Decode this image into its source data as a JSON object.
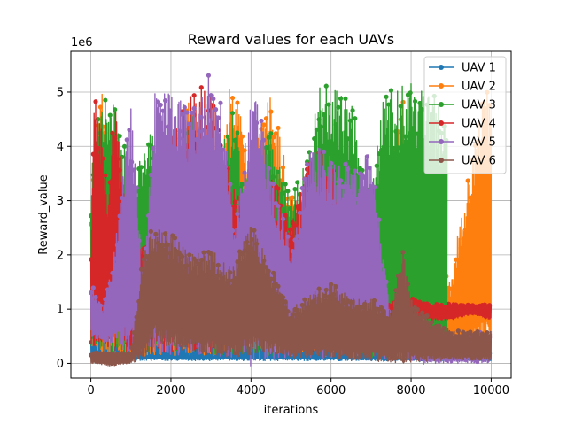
{
  "chart_data": {
    "type": "line",
    "title": "Reward values for each UAVs",
    "xlabel": "iterations",
    "ylabel": "Reward_value",
    "y_offset_label": "1e6",
    "xlim": [
      -500,
      10500
    ],
    "ylim": [
      -0.27,
      5.75
    ],
    "xticks": [
      0,
      2000,
      4000,
      6000,
      8000,
      10000
    ],
    "xtick_labels": [
      "0",
      "2000",
      "4000",
      "6000",
      "8000",
      "10000"
    ],
    "yticks": [
      0,
      1,
      2,
      3,
      4,
      5
    ],
    "ytick_labels": [
      "0",
      "1",
      "2",
      "3",
      "4",
      "5"
    ],
    "grid": true,
    "legend": "top-right",
    "series": [
      {
        "name": "UAV 1",
        "color": "#1f77b4",
        "x": [
          0,
          500,
          1000,
          2000,
          3000,
          4000,
          5000,
          6000,
          7000,
          8000,
          9000,
          10000
        ],
        "low": [
          0.05,
          0.05,
          0.05,
          0.05,
          0.05,
          0.05,
          0.05,
          0.05,
          0.05,
          0.05,
          0.05,
          0.05
        ],
        "high": [
          0.5,
          0.6,
          0.4,
          0.4,
          0.4,
          0.4,
          0.4,
          0.4,
          0.3,
          0.2,
          0.2,
          0.2
        ]
      },
      {
        "name": "UAV 2",
        "color": "#ff7f0e",
        "x": [
          0,
          300,
          600,
          1000,
          1500,
          2000,
          2500,
          3000,
          3500,
          4000,
          4500,
          5000,
          5500,
          6000,
          6500,
          7000,
          7500,
          7800,
          8000,
          8500,
          9000,
          9200,
          9500,
          9800,
          10000
        ],
        "low": [
          0.1,
          0.1,
          0.1,
          0.1,
          0.15,
          0.1,
          0.15,
          0.1,
          0.15,
          0.2,
          0.15,
          0.2,
          0.15,
          0.2,
          0.15,
          0.2,
          0.2,
          0.1,
          0.2,
          0.2,
          0.05,
          0.1,
          0.1,
          0.1,
          0.1
        ],
        "high": [
          3.2,
          5.2,
          2.5,
          3.0,
          2.2,
          3.5,
          5.0,
          2.5,
          5.3,
          3.8,
          5.1,
          3.2,
          2.0,
          4.2,
          2.3,
          3.2,
          3.5,
          5.2,
          3.8,
          2.6,
          1.5,
          2.6,
          3.8,
          5.0,
          5.3
        ]
      },
      {
        "name": "UAV 3",
        "color": "#2ca02c",
        "x": [
          0,
          300,
          600,
          1000,
          1500,
          2000,
          2500,
          3000,
          3500,
          4000,
          4500,
          5000,
          5500,
          5700,
          6000,
          6500,
          7000,
          7300,
          7600,
          8000,
          8400,
          8900
        ],
        "low": [
          0.3,
          0.2,
          0.1,
          0.2,
          0.2,
          0.2,
          0.15,
          0.1,
          0.15,
          0.2,
          0.1,
          0.2,
          0.15,
          0.2,
          0.1,
          0.15,
          0.1,
          0.1,
          0.1,
          0.05,
          -0.05,
          -0.05
        ],
        "high": [
          3.5,
          5.3,
          4.8,
          3.5,
          4.5,
          3.5,
          4.7,
          3.5,
          4.8,
          3.2,
          4.3,
          3.0,
          4.2,
          5.2,
          5.1,
          4.9,
          3.0,
          5.1,
          5.0,
          5.3,
          5.0,
          4.8
        ]
      },
      {
        "name": "UAV 4",
        "color": "#d62728",
        "x": [
          0,
          100,
          200,
          400,
          600,
          1000,
          1500,
          2000,
          2500,
          3000,
          3500,
          4000,
          4500,
          5000,
          5500,
          6000,
          6500,
          7000,
          7500,
          8000,
          8500,
          9000,
          9500,
          10000
        ],
        "low": [
          0.2,
          0.3,
          0.4,
          0.3,
          0.2,
          0.15,
          0.2,
          0.2,
          0.2,
          0.2,
          0.2,
          0.2,
          0.2,
          0.2,
          0.2,
          0.2,
          0.2,
          0.2,
          0.2,
          0.9,
          0.8,
          0.8,
          0.9,
          0.8
        ],
        "high": [
          2.3,
          5.4,
          4.8,
          3.2,
          4.9,
          2.0,
          2.3,
          4.2,
          5.2,
          5.0,
          3.4,
          2.8,
          3.6,
          2.7,
          4.0,
          3.8,
          2.3,
          1.0,
          1.2,
          1.2,
          1.1,
          1.1,
          1.1,
          1.1
        ]
      },
      {
        "name": "UAV 5",
        "color": "#9467bd",
        "x": [
          0,
          300,
          600,
          1000,
          1300,
          1600,
          2000,
          2500,
          2900,
          3300,
          3600,
          4000,
          4200,
          4500,
          5000,
          5500,
          5700,
          6000,
          6500,
          7000,
          7500,
          8000,
          8500,
          9000,
          9500,
          10000
        ],
        "low": [
          0.5,
          0.4,
          0.3,
          0.2,
          0.2,
          0.15,
          0.1,
          0.1,
          0.1,
          0.1,
          0.1,
          -0.05,
          -0.05,
          0.1,
          0.1,
          0.1,
          0.1,
          0.05,
          0.1,
          0.05,
          0.1,
          0.05,
          0.0,
          0.0,
          0.0,
          0.0
        ],
        "high": [
          1.5,
          1.0,
          2.2,
          4.9,
          1.5,
          5.0,
          5.0,
          4.8,
          5.4,
          4.7,
          2.7,
          4.8,
          5.0,
          3.5,
          2.2,
          4.1,
          4.0,
          3.8,
          3.8,
          4.0,
          0.8,
          0.6,
          0.5,
          0.45,
          0.6,
          0.6
        ]
      },
      {
        "name": "UAV 6",
        "color": "#8c564b",
        "x": [
          0,
          500,
          1000,
          1300,
          1600,
          2000,
          2500,
          3000,
          3500,
          4000,
          4500,
          5000,
          5500,
          6000,
          6500,
          7000,
          7500,
          7800,
          8000,
          8500,
          9000,
          9500,
          10000
        ],
        "low": [
          0.0,
          -0.05,
          0.0,
          0.05,
          0.4,
          0.3,
          0.2,
          0.15,
          0.1,
          0.15,
          0.2,
          0.1,
          0.1,
          0.1,
          0.05,
          0.05,
          0.0,
          0.0,
          0.0,
          0.05,
          0.05,
          0.05,
          0.05
        ],
        "high": [
          0.2,
          0.2,
          0.2,
          2.1,
          2.6,
          2.4,
          2.0,
          2.1,
          1.8,
          2.6,
          1.8,
          1.0,
          1.3,
          1.5,
          1.2,
          1.2,
          1.0,
          2.1,
          1.2,
          0.8,
          0.6,
          0.6,
          0.6
        ]
      }
    ]
  }
}
